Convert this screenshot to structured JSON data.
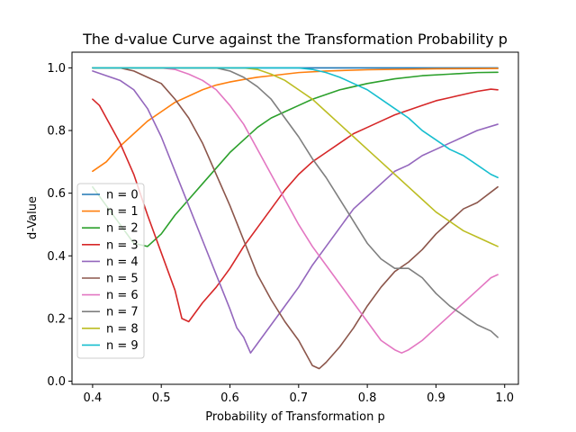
{
  "chart_data": {
    "type": "line",
    "title": "The d-value Curve against the Transformation Probability p",
    "xlabel": "Probability of Transformation p",
    "ylabel": "d-Value",
    "xlim": [
      0.37,
      1.02
    ],
    "ylim": [
      -0.01,
      1.05
    ],
    "xticks": [
      0.4,
      0.5,
      0.6,
      0.7,
      0.8,
      0.9,
      1.0
    ],
    "xtick_labels": [
      "0.4",
      "0.5",
      "0.6",
      "0.7",
      "0.8",
      "0.9",
      "1.0"
    ],
    "yticks": [
      0.0,
      0.2,
      0.4,
      0.6,
      0.8,
      1.0
    ],
    "ytick_labels": [
      "0.0",
      "0.2",
      "0.4",
      "0.6",
      "0.8",
      "1.0"
    ],
    "grid": false,
    "legend_position": "lower-left",
    "series": [
      {
        "name": "n = 0",
        "color": "#1f77b4",
        "points": [
          [
            0.4,
            1.0
          ],
          [
            0.99,
            1.0
          ]
        ]
      },
      {
        "name": "n = 1",
        "color": "#ff7f0e",
        "points": [
          [
            0.4,
            0.67
          ],
          [
            0.42,
            0.7
          ],
          [
            0.44,
            0.75
          ],
          [
            0.46,
            0.79
          ],
          [
            0.48,
            0.83
          ],
          [
            0.5,
            0.86
          ],
          [
            0.52,
            0.89
          ],
          [
            0.54,
            0.91
          ],
          [
            0.56,
            0.93
          ],
          [
            0.58,
            0.945
          ],
          [
            0.6,
            0.955
          ],
          [
            0.62,
            0.963
          ],
          [
            0.64,
            0.97
          ],
          [
            0.66,
            0.975
          ],
          [
            0.68,
            0.98
          ],
          [
            0.7,
            0.985
          ],
          [
            0.74,
            0.99
          ],
          [
            0.8,
            0.994
          ],
          [
            0.9,
            0.997
          ],
          [
            0.99,
            0.998
          ]
        ]
      },
      {
        "name": "n = 2",
        "color": "#2ca02c",
        "points": [
          [
            0.4,
            0.62
          ],
          [
            0.42,
            0.56
          ],
          [
            0.44,
            0.5
          ],
          [
            0.46,
            0.44
          ],
          [
            0.48,
            0.43
          ],
          [
            0.5,
            0.47
          ],
          [
            0.52,
            0.53
          ],
          [
            0.54,
            0.58
          ],
          [
            0.56,
            0.63
          ],
          [
            0.58,
            0.68
          ],
          [
            0.6,
            0.73
          ],
          [
            0.62,
            0.77
          ],
          [
            0.64,
            0.81
          ],
          [
            0.66,
            0.84
          ],
          [
            0.68,
            0.86
          ],
          [
            0.7,
            0.88
          ],
          [
            0.72,
            0.9
          ],
          [
            0.74,
            0.915
          ],
          [
            0.76,
            0.93
          ],
          [
            0.8,
            0.95
          ],
          [
            0.84,
            0.965
          ],
          [
            0.88,
            0.975
          ],
          [
            0.92,
            0.98
          ],
          [
            0.96,
            0.985
          ],
          [
            0.99,
            0.986
          ]
        ]
      },
      {
        "name": "n = 3",
        "color": "#d62728",
        "points": [
          [
            0.4,
            0.9
          ],
          [
            0.41,
            0.88
          ],
          [
            0.42,
            0.84
          ],
          [
            0.44,
            0.76
          ],
          [
            0.46,
            0.66
          ],
          [
            0.48,
            0.53
          ],
          [
            0.5,
            0.41
          ],
          [
            0.52,
            0.29
          ],
          [
            0.53,
            0.2
          ],
          [
            0.54,
            0.19
          ],
          [
            0.56,
            0.25
          ],
          [
            0.58,
            0.3
          ],
          [
            0.6,
            0.36
          ],
          [
            0.62,
            0.43
          ],
          [
            0.64,
            0.49
          ],
          [
            0.66,
            0.55
          ],
          [
            0.68,
            0.61
          ],
          [
            0.7,
            0.66
          ],
          [
            0.72,
            0.7
          ],
          [
            0.74,
            0.73
          ],
          [
            0.76,
            0.76
          ],
          [
            0.78,
            0.79
          ],
          [
            0.8,
            0.81
          ],
          [
            0.82,
            0.83
          ],
          [
            0.84,
            0.85
          ],
          [
            0.86,
            0.865
          ],
          [
            0.88,
            0.88
          ],
          [
            0.9,
            0.895
          ],
          [
            0.92,
            0.905
          ],
          [
            0.94,
            0.915
          ],
          [
            0.96,
            0.925
          ],
          [
            0.98,
            0.932
          ],
          [
            0.99,
            0.93
          ]
        ]
      },
      {
        "name": "n = 4",
        "color": "#9467bd",
        "points": [
          [
            0.4,
            0.99
          ],
          [
            0.42,
            0.975
          ],
          [
            0.44,
            0.96
          ],
          [
            0.46,
            0.93
          ],
          [
            0.48,
            0.87
          ],
          [
            0.5,
            0.78
          ],
          [
            0.52,
            0.67
          ],
          [
            0.54,
            0.56
          ],
          [
            0.56,
            0.45
          ],
          [
            0.58,
            0.34
          ],
          [
            0.6,
            0.23
          ],
          [
            0.61,
            0.17
          ],
          [
            0.62,
            0.14
          ],
          [
            0.63,
            0.09
          ],
          [
            0.64,
            0.12
          ],
          [
            0.66,
            0.18
          ],
          [
            0.68,
            0.24
          ],
          [
            0.7,
            0.3
          ],
          [
            0.72,
            0.37
          ],
          [
            0.74,
            0.43
          ],
          [
            0.76,
            0.49
          ],
          [
            0.78,
            0.55
          ],
          [
            0.8,
            0.59
          ],
          [
            0.82,
            0.63
          ],
          [
            0.84,
            0.67
          ],
          [
            0.86,
            0.69
          ],
          [
            0.88,
            0.72
          ],
          [
            0.9,
            0.74
          ],
          [
            0.92,
            0.76
          ],
          [
            0.94,
            0.78
          ],
          [
            0.96,
            0.8
          ],
          [
            0.99,
            0.82
          ]
        ]
      },
      {
        "name": "n = 5",
        "color": "#8c564b",
        "points": [
          [
            0.4,
            1.0
          ],
          [
            0.44,
            1.0
          ],
          [
            0.46,
            0.99
          ],
          [
            0.48,
            0.97
          ],
          [
            0.5,
            0.95
          ],
          [
            0.52,
            0.9
          ],
          [
            0.54,
            0.84
          ],
          [
            0.56,
            0.76
          ],
          [
            0.58,
            0.66
          ],
          [
            0.6,
            0.56
          ],
          [
            0.62,
            0.45
          ],
          [
            0.64,
            0.34
          ],
          [
            0.66,
            0.26
          ],
          [
            0.68,
            0.19
          ],
          [
            0.7,
            0.13
          ],
          [
            0.72,
            0.05
          ],
          [
            0.73,
            0.04
          ],
          [
            0.74,
            0.06
          ],
          [
            0.76,
            0.11
          ],
          [
            0.78,
            0.17
          ],
          [
            0.8,
            0.24
          ],
          [
            0.82,
            0.3
          ],
          [
            0.84,
            0.35
          ],
          [
            0.86,
            0.38
          ],
          [
            0.88,
            0.42
          ],
          [
            0.9,
            0.47
          ],
          [
            0.92,
            0.51
          ],
          [
            0.94,
            0.55
          ],
          [
            0.96,
            0.57
          ],
          [
            0.99,
            0.62
          ]
        ]
      },
      {
        "name": "n = 6",
        "color": "#e377c2",
        "points": [
          [
            0.4,
            1.0
          ],
          [
            0.5,
            1.0
          ],
          [
            0.52,
            0.995
          ],
          [
            0.54,
            0.98
          ],
          [
            0.56,
            0.96
          ],
          [
            0.58,
            0.93
          ],
          [
            0.6,
            0.88
          ],
          [
            0.62,
            0.82
          ],
          [
            0.64,
            0.74
          ],
          [
            0.66,
            0.66
          ],
          [
            0.68,
            0.58
          ],
          [
            0.7,
            0.5
          ],
          [
            0.72,
            0.43
          ],
          [
            0.74,
            0.37
          ],
          [
            0.76,
            0.31
          ],
          [
            0.78,
            0.25
          ],
          [
            0.8,
            0.19
          ],
          [
            0.82,
            0.13
          ],
          [
            0.84,
            0.1
          ],
          [
            0.85,
            0.09
          ],
          [
            0.86,
            0.1
          ],
          [
            0.88,
            0.13
          ],
          [
            0.9,
            0.17
          ],
          [
            0.92,
            0.21
          ],
          [
            0.94,
            0.25
          ],
          [
            0.96,
            0.29
          ],
          [
            0.98,
            0.33
          ],
          [
            0.99,
            0.34
          ]
        ]
      },
      {
        "name": "n = 7",
        "color": "#7f7f7f",
        "points": [
          [
            0.4,
            1.0
          ],
          [
            0.58,
            1.0
          ],
          [
            0.6,
            0.99
          ],
          [
            0.62,
            0.97
          ],
          [
            0.64,
            0.94
          ],
          [
            0.66,
            0.9
          ],
          [
            0.68,
            0.84
          ],
          [
            0.7,
            0.78
          ],
          [
            0.72,
            0.71
          ],
          [
            0.74,
            0.65
          ],
          [
            0.76,
            0.58
          ],
          [
            0.78,
            0.51
          ],
          [
            0.8,
            0.44
          ],
          [
            0.82,
            0.39
          ],
          [
            0.84,
            0.36
          ],
          [
            0.86,
            0.36
          ],
          [
            0.88,
            0.33
          ],
          [
            0.9,
            0.28
          ],
          [
            0.92,
            0.24
          ],
          [
            0.94,
            0.21
          ],
          [
            0.96,
            0.18
          ],
          [
            0.98,
            0.16
          ],
          [
            0.99,
            0.14
          ]
        ]
      },
      {
        "name": "n = 8",
        "color": "#bcbd22",
        "points": [
          [
            0.4,
            1.0
          ],
          [
            0.62,
            1.0
          ],
          [
            0.64,
            0.995
          ],
          [
            0.66,
            0.98
          ],
          [
            0.68,
            0.96
          ],
          [
            0.7,
            0.93
          ],
          [
            0.72,
            0.9
          ],
          [
            0.74,
            0.86
          ],
          [
            0.76,
            0.82
          ],
          [
            0.78,
            0.78
          ],
          [
            0.8,
            0.74
          ],
          [
            0.82,
            0.7
          ],
          [
            0.84,
            0.66
          ],
          [
            0.86,
            0.62
          ],
          [
            0.88,
            0.58
          ],
          [
            0.9,
            0.54
          ],
          [
            0.92,
            0.51
          ],
          [
            0.94,
            0.48
          ],
          [
            0.96,
            0.46
          ],
          [
            0.98,
            0.44
          ],
          [
            0.99,
            0.43
          ]
        ]
      },
      {
        "name": "n = 9",
        "color": "#17becf",
        "points": [
          [
            0.4,
            1.0
          ],
          [
            0.7,
            1.0
          ],
          [
            0.72,
            0.995
          ],
          [
            0.74,
            0.985
          ],
          [
            0.76,
            0.97
          ],
          [
            0.78,
            0.95
          ],
          [
            0.8,
            0.93
          ],
          [
            0.82,
            0.9
          ],
          [
            0.84,
            0.87
          ],
          [
            0.86,
            0.84
          ],
          [
            0.88,
            0.8
          ],
          [
            0.9,
            0.77
          ],
          [
            0.92,
            0.74
          ],
          [
            0.94,
            0.72
          ],
          [
            0.96,
            0.69
          ],
          [
            0.98,
            0.66
          ],
          [
            0.99,
            0.65
          ]
        ]
      }
    ]
  }
}
